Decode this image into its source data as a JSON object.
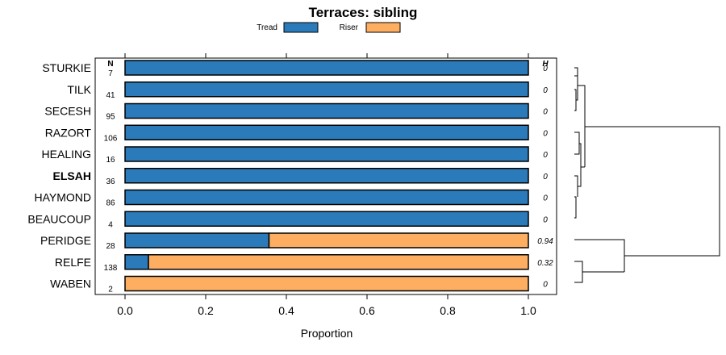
{
  "chart_data": {
    "type": "bar",
    "orientation": "horizontal",
    "stacked": true,
    "title": "Terraces: sibling",
    "xlabel": "Proportion",
    "ylabel": "",
    "xlim": [
      0,
      1
    ],
    "xticks": [
      "0.0",
      "0.2",
      "0.4",
      "0.6",
      "0.8",
      "1.0"
    ],
    "n_header": "N",
    "h_header": "H",
    "categories": [
      "STURKIE",
      "TILK",
      "SECESH",
      "RAZORT",
      "HEALING",
      "ELSAH",
      "HAYMOND",
      "BEAUCOUP",
      "PERIDGE",
      "RELFE",
      "WABEN"
    ],
    "highlighted_category": "ELSAH",
    "n": [
      "7",
      "41",
      "95",
      "106",
      "16",
      "36",
      "86",
      "4",
      "28",
      "138",
      "2"
    ],
    "h": [
      "0",
      "0",
      "0",
      "0",
      "0",
      "0",
      "0",
      "0",
      "0.94",
      "0.32",
      "0"
    ],
    "series": [
      {
        "name": "Tread",
        "color": "#2b7bba",
        "values": [
          1,
          1,
          1,
          1,
          1,
          1,
          1,
          1,
          0.357,
          0.058,
          0
        ]
      },
      {
        "name": "Riser",
        "color": "#fdae61",
        "values": [
          0,
          0,
          0,
          0,
          0,
          0,
          0,
          0,
          0.643,
          0.942,
          1
        ]
      }
    ],
    "legend_position": "top-center",
    "dendrogram": "right"
  }
}
